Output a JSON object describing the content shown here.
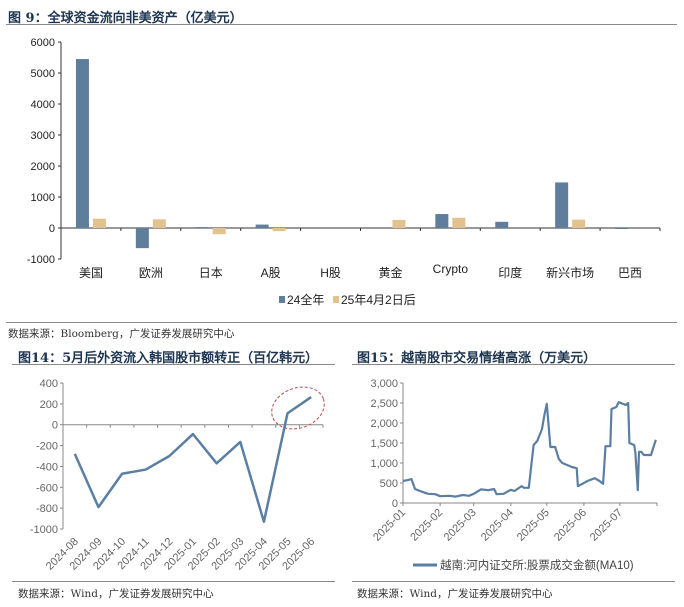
{
  "colors": {
    "series_blue": "#5f7e9c",
    "series_tan": "#e2c28e",
    "line_blue": "#5b7fa2",
    "highlight_ellipse": "#b84a4a"
  },
  "charts": [
    {
      "title": "图 9：全球资金流向非美资产（亿美元）",
      "source": "数据来源：Bloomberg，广发证券发展研究中心"
    },
    {
      "title": "图14：5月后外资流入韩国股市额转正（百亿韩元）",
      "source": "数据来源：Wind，广发证券发展研究中心"
    },
    {
      "title": "图15：越南股市交易情绪高涨（万美元）",
      "source": "数据来源：Wind，广发证券发展研究中心"
    }
  ],
  "chart_data": [
    {
      "type": "bar",
      "title": "图 9：全球资金流向非美资产（亿美元）",
      "categories": [
        "美国",
        "欧洲",
        "日本",
        "A股",
        "H股",
        "黄金",
        "Crypto",
        "印度",
        "新兴市场",
        "巴西"
      ],
      "series": [
        {
          "name": "24全年",
          "values": [
            5450,
            -650,
            30,
            110,
            0,
            0,
            450,
            200,
            1470,
            -20
          ]
        },
        {
          "name": "25年4月2日后",
          "values": [
            300,
            280,
            -200,
            -100,
            0,
            260,
            330,
            0,
            270,
            0
          ]
        }
      ],
      "ylim": [
        -1000,
        6000
      ],
      "yticks": [
        "6000",
        "5000",
        "4000",
        "3000",
        "2000",
        "1000",
        "0",
        "-1000"
      ],
      "legend": "bottom",
      "grid": false
    },
    {
      "type": "line",
      "title": "图14：5月后外资流入韩国股市额转正（百亿韩元）",
      "x": [
        "2024-08",
        "2024-09",
        "2024-10",
        "2024-11",
        "2024-12",
        "2025-01",
        "2025-02",
        "2025-03",
        "2025-04",
        "2025-05",
        "2025-06"
      ],
      "values": [
        -280,
        -790,
        -470,
        -430,
        -300,
        -90,
        -370,
        -165,
        -930,
        110,
        265
      ],
      "ylim": [
        -1000,
        400
      ],
      "yticks": [
        "400",
        "200",
        "0",
        "-200",
        "-400",
        "-600",
        "-800",
        "-1000"
      ],
      "annotation": "ellipse around 2025-05 to 2025-06",
      "grid": false
    },
    {
      "type": "line",
      "title": "图15：越南股市交易情绪高涨（万美元）",
      "series": [
        {
          "name": "越南:河内证交所:股票成交金额(MA10)",
          "points": [
            [
              "2025-01-01",
              550
            ],
            [
              "2025-01-06",
              580
            ],
            [
              "2025-01-08",
              600
            ],
            [
              "2025-01-11",
              350
            ],
            [
              "2025-01-17",
              280
            ],
            [
              "2025-01-22",
              230
            ],
            [
              "2025-01-28",
              220
            ],
            [
              "2025-02-01",
              170
            ],
            [
              "2025-02-09",
              180
            ],
            [
              "2025-02-14",
              160
            ],
            [
              "2025-02-20",
              200
            ],
            [
              "2025-02-25",
              180
            ],
            [
              "2025-03-01",
              230
            ],
            [
              "2025-03-07",
              340
            ],
            [
              "2025-03-13",
              320
            ],
            [
              "2025-03-18",
              350
            ],
            [
              "2025-03-20",
              220
            ],
            [
              "2025-03-26",
              230
            ],
            [
              "2025-04-01",
              330
            ],
            [
              "2025-04-04",
              300
            ],
            [
              "2025-04-10",
              420
            ],
            [
              "2025-04-12",
              380
            ],
            [
              "2025-04-16",
              380
            ],
            [
              "2025-04-20",
              1450
            ],
            [
              "2025-04-23",
              1550
            ],
            [
              "2025-04-27",
              1850
            ],
            [
              "2025-04-29",
              2200
            ],
            [
              "2025-05-01",
              2480
            ],
            [
              "2025-05-04",
              1400
            ],
            [
              "2025-05-08",
              1400
            ],
            [
              "2025-05-11",
              1100
            ],
            [
              "2025-05-14",
              1000
            ],
            [
              "2025-05-18",
              950
            ],
            [
              "2025-05-22",
              900
            ],
            [
              "2025-05-26",
              870
            ],
            [
              "2025-05-27",
              420
            ],
            [
              "2025-06-01",
              500
            ],
            [
              "2025-06-04",
              550
            ],
            [
              "2025-06-10",
              620
            ],
            [
              "2025-06-14",
              550
            ],
            [
              "2025-06-17",
              480
            ],
            [
              "2025-06-19",
              1420
            ],
            [
              "2025-06-23",
              1420
            ],
            [
              "2025-06-24",
              2350
            ],
            [
              "2025-06-28",
              2400
            ],
            [
              "2025-06-30",
              2520
            ],
            [
              "2025-07-06",
              2450
            ],
            [
              "2025-07-08",
              2500
            ],
            [
              "2025-07-09",
              1500
            ],
            [
              "2025-07-13",
              1450
            ],
            [
              "2025-07-14",
              1250
            ],
            [
              "2025-07-16",
              320
            ],
            [
              "2025-07-17",
              1280
            ],
            [
              "2025-07-19",
              1280
            ],
            [
              "2025-07-21",
              1200
            ],
            [
              "2025-07-27",
              1200
            ],
            [
              "2025-07-31",
              1580
            ]
          ]
        }
      ],
      "xticks": [
        "2025-01",
        "2025-02",
        "2025-03",
        "2025-04",
        "2025-05",
        "2025-06",
        "2025-07"
      ],
      "ylim": [
        0,
        3000
      ],
      "yticks": [
        "3,000",
        "2,500",
        "2,000",
        "1,500",
        "1,000",
        "500",
        "0"
      ],
      "legend": "bottom",
      "grid": false
    }
  ]
}
